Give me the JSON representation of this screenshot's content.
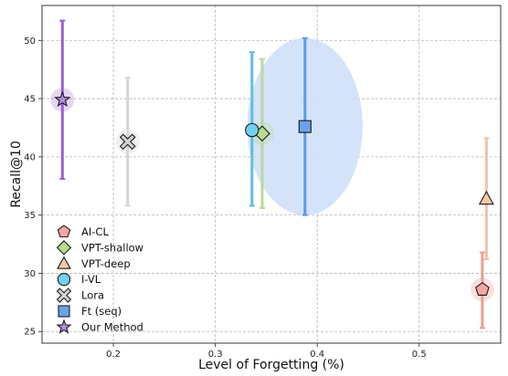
{
  "chart_data": {
    "type": "scatter",
    "xlabel": "Level of Forgetting (%)",
    "ylabel": "Recall@10",
    "xlim": [
      0.13,
      0.58
    ],
    "ylim": [
      24,
      53
    ],
    "x_ticks": [
      0.2,
      0.3,
      0.4,
      0.5
    ],
    "y_ticks": [
      25,
      30,
      35,
      40,
      45,
      50
    ],
    "grid": true,
    "legend_position": "lower-left",
    "series": [
      {
        "name": "AI-CL",
        "marker": "pentagon",
        "color": "#f4a6a0",
        "error_color": "#eaa08f",
        "x": 0.562,
        "y": 28.6,
        "y_low": 25.3,
        "y_high": 31.8,
        "halo": true
      },
      {
        "name": "VPT-shallow",
        "marker": "diamond",
        "color": "#b9dc8e",
        "error_color": "#bcd79a",
        "x": 0.346,
        "y": 42.0,
        "y_low": 35.6,
        "y_high": 48.4,
        "halo": true
      },
      {
        "name": "VPT-deep",
        "marker": "triangle",
        "color": "#f7c9a6",
        "error_color": "#f2c2a5",
        "x": 0.566,
        "y": 36.4,
        "y_low": 31.2,
        "y_high": 41.6,
        "halo": false
      },
      {
        "name": "I-VL",
        "marker": "circle",
        "color": "#6fd3ef",
        "error_color": "#5fbde6",
        "x": 0.336,
        "y": 42.3,
        "y_low": 35.8,
        "y_high": 49.0,
        "halo": false
      },
      {
        "name": "Lora",
        "marker": "x",
        "color": "#d3d3d3",
        "error_color": "#d6d6d6",
        "x": 0.214,
        "y": 41.3,
        "y_low": 35.8,
        "y_high": 46.8,
        "halo": true
      },
      {
        "name": "Ft (seq)",
        "marker": "square",
        "color": "#6aa2ec",
        "error_color": "#5b98e6",
        "x": 0.388,
        "y": 42.6,
        "y_low": 35.0,
        "y_high": 50.2,
        "halo": false
      },
      {
        "name": "Our Method",
        "marker": "star",
        "color": "#b48ce0",
        "error_color": "#9a5fd6",
        "x": 0.15,
        "y": 44.9,
        "y_low": 38.1,
        "y_high": 51.7,
        "halo": true
      }
    ],
    "bubble": {
      "x": 0.388,
      "y": 42.6,
      "color": "#cfe0fa",
      "rx_data": 0.0565,
      "ry_data": 7.6
    }
  }
}
